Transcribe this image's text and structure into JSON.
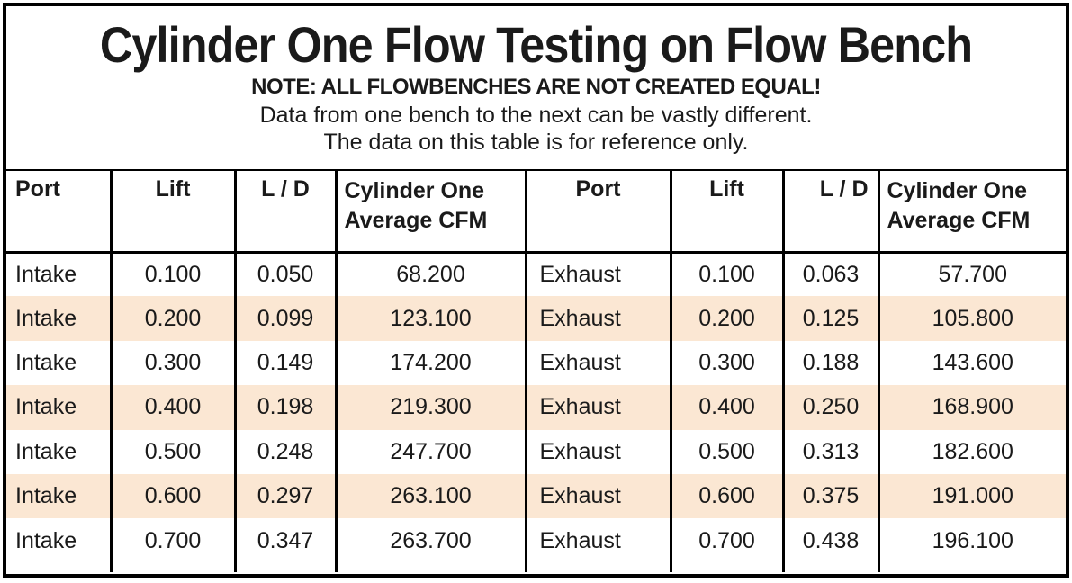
{
  "title": "Cylinder One Flow Testing on Flow Bench",
  "note": {
    "line1": "NOTE: ALL FLOWBENCHES ARE NOT CREATED EQUAL!",
    "line2": "Data from one bench to the next can be vastly different.",
    "line3": "The data on this table is for reference only."
  },
  "colors": {
    "stripe": "#fbe7d3",
    "border": "#000000",
    "text": "#1a1a1a",
    "background": "#ffffff"
  },
  "table": {
    "header": {
      "port": "Port",
      "lift": "Lift",
      "ld": "L / D",
      "cfm_line1": "Cylinder One",
      "cfm_line2": "Average CFM"
    },
    "rows": [
      {
        "port_l": "Intake",
        "lift_l": "0.100",
        "ld_l": "0.050",
        "cfm_l": "68.200",
        "port_r": "Exhaust",
        "lift_r": "0.100",
        "ld_r": "0.063",
        "cfm_r": "57.700",
        "striped": false
      },
      {
        "port_l": "Intake",
        "lift_l": "0.200",
        "ld_l": "0.099",
        "cfm_l": "123.100",
        "port_r": "Exhaust",
        "lift_r": "0.200",
        "ld_r": "0.125",
        "cfm_r": "105.800",
        "striped": true
      },
      {
        "port_l": "Intake",
        "lift_l": "0.300",
        "ld_l": "0.149",
        "cfm_l": "174.200",
        "port_r": "Exhaust",
        "lift_r": "0.300",
        "ld_r": "0.188",
        "cfm_r": "143.600",
        "striped": false
      },
      {
        "port_l": "Intake",
        "lift_l": "0.400",
        "ld_l": "0.198",
        "cfm_l": "219.300",
        "port_r": "Exhaust",
        "lift_r": "0.400",
        "ld_r": "0.250",
        "cfm_r": "168.900",
        "striped": true
      },
      {
        "port_l": "Intake",
        "lift_l": "0.500",
        "ld_l": "0.248",
        "cfm_l": "247.700",
        "port_r": "Exhaust",
        "lift_r": "0.500",
        "ld_r": "0.313",
        "cfm_r": "182.600",
        "striped": false
      },
      {
        "port_l": "Intake",
        "lift_l": "0.600",
        "ld_l": "0.297",
        "cfm_l": "263.100",
        "port_r": "Exhaust",
        "lift_r": "0.600",
        "ld_r": "0.375",
        "cfm_r": "191.000",
        "striped": true
      },
      {
        "port_l": "Intake",
        "lift_l": "0.700",
        "ld_l": "0.347",
        "cfm_l": "263.700",
        "port_r": "Exhaust",
        "lift_r": "0.700",
        "ld_r": "0.438",
        "cfm_r": "196.100",
        "striped": false
      }
    ]
  },
  "chart_data": {
    "type": "table",
    "title": "Cylinder One Flow Testing on Flow Bench",
    "subtitle": "NOTE: ALL FLOWBENCHES ARE NOT CREATED EQUAL! Data from one bench to the next can be vastly different. The data on this table is for reference only.",
    "columns": [
      "Port",
      "Lift",
      "L / D",
      "Cylinder One Average CFM",
      "Port",
      "Lift",
      "L / D",
      "Cylinder One Average CFM"
    ],
    "rows": [
      [
        "Intake",
        0.1,
        0.05,
        68.2,
        "Exhaust",
        0.1,
        0.063,
        57.7
      ],
      [
        "Intake",
        0.2,
        0.099,
        123.1,
        "Exhaust",
        0.2,
        0.125,
        105.8
      ],
      [
        "Intake",
        0.3,
        0.149,
        174.2,
        "Exhaust",
        0.3,
        0.188,
        143.6
      ],
      [
        "Intake",
        0.4,
        0.198,
        219.3,
        "Exhaust",
        0.4,
        0.25,
        168.9
      ],
      [
        "Intake",
        0.5,
        0.248,
        247.7,
        "Exhaust",
        0.5,
        0.313,
        182.6
      ],
      [
        "Intake",
        0.6,
        0.297,
        263.1,
        "Exhaust",
        0.6,
        0.375,
        191.0
      ],
      [
        "Intake",
        0.7,
        0.347,
        263.7,
        "Exhaust",
        0.7,
        0.438,
        196.1
      ]
    ],
    "series": [
      {
        "name": "Intake Average CFM",
        "lift": [
          0.1,
          0.2,
          0.3,
          0.4,
          0.5,
          0.6,
          0.7
        ],
        "l_over_d": [
          0.05,
          0.099,
          0.149,
          0.198,
          0.248,
          0.297,
          0.347
        ],
        "values": [
          68.2,
          123.1,
          174.2,
          219.3,
          247.7,
          263.1,
          263.7
        ]
      },
      {
        "name": "Exhaust Average CFM",
        "lift": [
          0.1,
          0.2,
          0.3,
          0.4,
          0.5,
          0.6,
          0.7
        ],
        "l_over_d": [
          0.063,
          0.125,
          0.188,
          0.25,
          0.313,
          0.375,
          0.438
        ],
        "values": [
          57.7,
          105.8,
          143.6,
          168.9,
          182.6,
          191.0,
          196.1
        ]
      }
    ]
  }
}
